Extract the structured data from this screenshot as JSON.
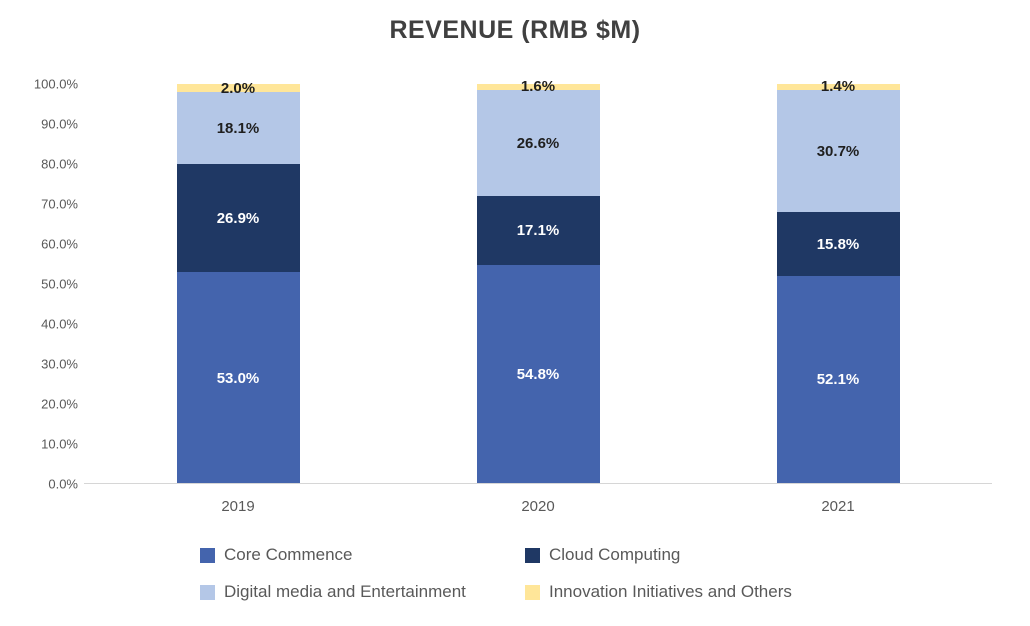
{
  "chart_data": {
    "type": "bar",
    "stacked": true,
    "title": "REVENUE (RMB $M)",
    "categories": [
      "2019",
      "2020",
      "2021"
    ],
    "series": [
      {
        "name": "Core Commence",
        "color": "#4464AD",
        "label_color": "#ffffff",
        "values": [
          53.0,
          54.8,
          52.1
        ]
      },
      {
        "name": "Cloud Computing",
        "color": "#1F3864",
        "label_color": "#ffffff",
        "values": [
          26.9,
          17.1,
          15.8
        ]
      },
      {
        "name": "Digital media and Entertainment",
        "color": "#B4C7E7",
        "label_color": "#1f1f1f",
        "values": [
          18.1,
          26.6,
          30.7
        ]
      },
      {
        "name": "Innovation Initiatives and Others",
        "color": "#FFE699",
        "label_color": "#1f1f1f",
        "values": [
          2.0,
          1.6,
          1.4
        ]
      }
    ],
    "value_suffix": "%",
    "ylim": [
      0,
      100
    ],
    "y_ticks": [
      "0.0%",
      "10.0%",
      "20.0%",
      "30.0%",
      "40.0%",
      "50.0%",
      "60.0%",
      "70.0%",
      "80.0%",
      "90.0%",
      "100.0%"
    ],
    "grid": false,
    "legend_position": "bottom",
    "legend_rows": [
      [
        "Core Commence",
        "Cloud Computing"
      ],
      [
        "Digital media and Entertainment",
        "Innovation Initiatives and Others"
      ]
    ]
  }
}
